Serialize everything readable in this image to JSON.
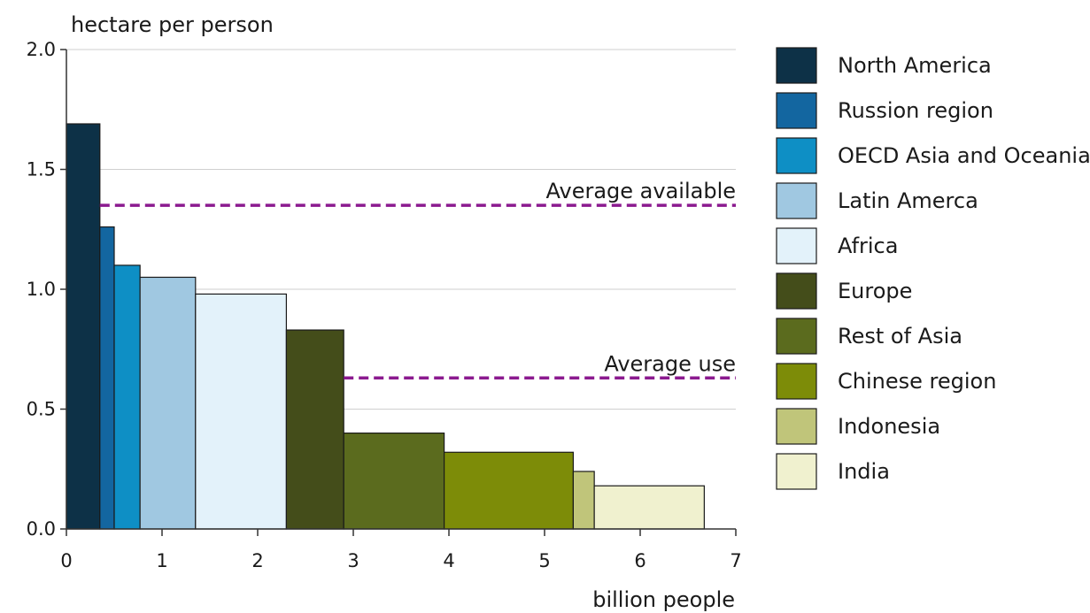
{
  "chart_data": {
    "type": "bar",
    "variant": "variable-width",
    "ylabel": "hectare per person",
    "xlabel": "billion people",
    "xlim": [
      0,
      7
    ],
    "ylim": [
      0,
      2.0
    ],
    "x_ticks": [
      "0",
      "1",
      "2",
      "3",
      "4",
      "5",
      "6",
      "7"
    ],
    "y_ticks": [
      "0.0",
      "0.5",
      "1.0",
      "1.5",
      "2.0"
    ],
    "grid": "horizontal",
    "legend_position": "right",
    "series": [
      {
        "name": "North America",
        "x_start": 0.0,
        "x_end": 0.35,
        "value": 1.69,
        "color": "#0d3147"
      },
      {
        "name": "Russion region",
        "x_start": 0.35,
        "x_end": 0.5,
        "value": 1.26,
        "color": "#1366a0"
      },
      {
        "name": "OECD Asia and Oceania",
        "x_start": 0.5,
        "x_end": 0.77,
        "value": 1.1,
        "color": "#0e8fc5"
      },
      {
        "name": "Latin Amerca",
        "x_start": 0.77,
        "x_end": 1.35,
        "value": 1.05,
        "color": "#a0c8e1"
      },
      {
        "name": "Africa",
        "x_start": 1.35,
        "x_end": 2.3,
        "value": 0.98,
        "color": "#e3f2fa"
      },
      {
        "name": "Europe",
        "x_start": 2.3,
        "x_end": 2.9,
        "value": 0.83,
        "color": "#444d1a"
      },
      {
        "name": "Rest of Asia",
        "x_start": 2.9,
        "x_end": 3.95,
        "value": 0.4,
        "color": "#5b6b1e"
      },
      {
        "name": "Chinese region",
        "x_start": 3.95,
        "x_end": 5.3,
        "value": 0.32,
        "color": "#7d8c08"
      },
      {
        "name": "Indonesia",
        "x_start": 5.3,
        "x_end": 5.52,
        "value": 0.24,
        "color": "#c0c57a"
      },
      {
        "name": "India",
        "x_start": 5.52,
        "x_end": 6.67,
        "value": 0.18,
        "color": "#f0f1cf"
      }
    ],
    "reference_lines": [
      {
        "label": "Average available",
        "value": 1.35,
        "color": "#8b1a8f"
      },
      {
        "label": "Average use",
        "value": 0.63,
        "color": "#8b1a8f"
      }
    ]
  }
}
